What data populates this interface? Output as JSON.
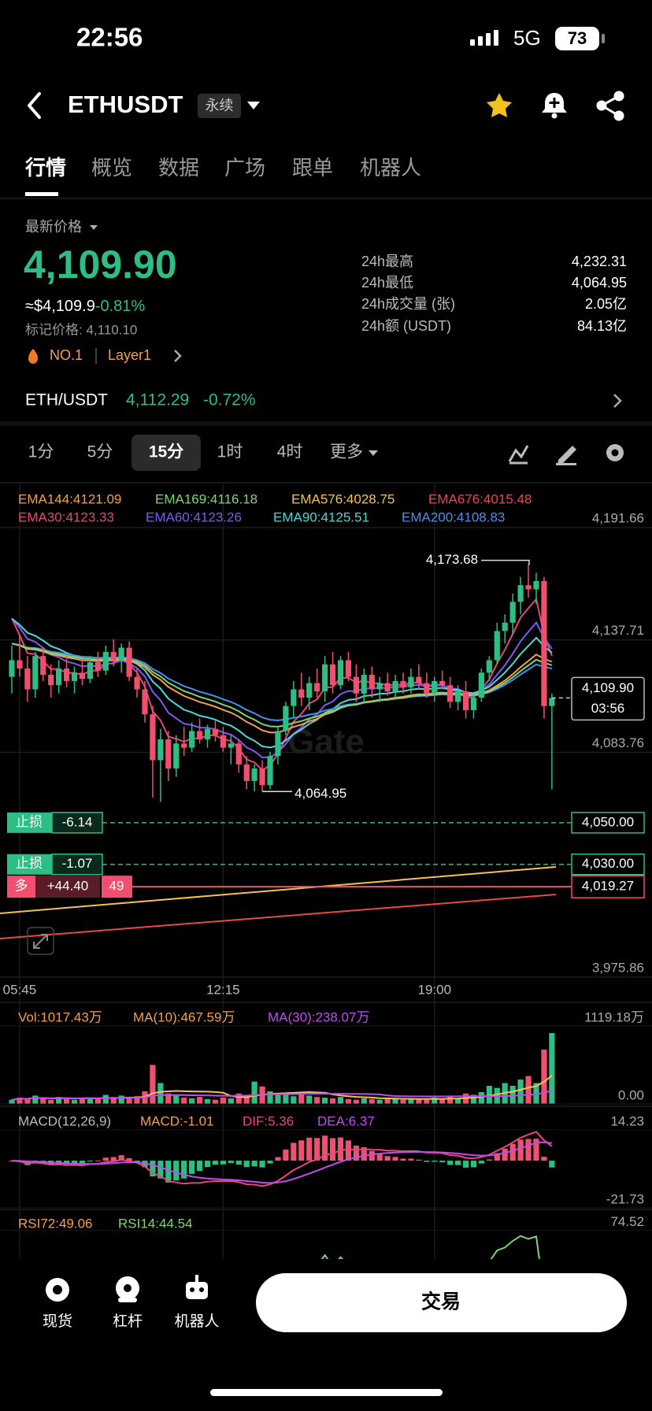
{
  "status_bar": {
    "time": "22:56",
    "network": "5G",
    "battery": "73"
  },
  "header": {
    "symbol": "ETHUSDT",
    "badge": "永续"
  },
  "tabs": [
    "行情",
    "概览",
    "数据",
    "广场",
    "跟单",
    "机器人"
  ],
  "summary": {
    "price_label": "最新价格",
    "price": "4,109.90",
    "usd": "≈$4,109.9",
    "change": "-0.81%",
    "mark_price": "标记价格: 4,110.10",
    "rank": "NO.1",
    "tag": "Layer1",
    "stats": [
      {
        "label": "24h最高",
        "value": "4,232.31"
      },
      {
        "label": "24h最低",
        "value": "4,064.95"
      },
      {
        "label": "24h成交量 (张)",
        "value": "2.05亿"
      },
      {
        "label": "24h额 (USDT)",
        "value": "84.13亿"
      }
    ]
  },
  "spot": {
    "pair": "ETH/USDT",
    "price": "4,112.29",
    "change": "-0.72%"
  },
  "intervals": [
    "1分",
    "5分",
    "15分",
    "1时",
    "4时",
    "更多"
  ],
  "selected_interval": 2,
  "chart": {
    "type": "candlestick",
    "watermark": "Gate",
    "ema_legend": [
      "EMA144:4121.09",
      "EMA169:4116.18",
      "EMA576:4028.75",
      "EMA676:4015.48",
      "EMA30:4123.33",
      "EMA60:4123.26",
      "EMA90:4125.51",
      "EMA200:4108.83"
    ],
    "ema_colors": [
      "#f0a050",
      "#7ed56f",
      "#f5c24c",
      "#e84848",
      "#e8457a",
      "#7b5cf0",
      "#4fd6d6",
      "#4a8ff0"
    ],
    "up_color": "#2ebd85",
    "down_color": "#f0506e",
    "ylim": [
      3975.86,
      4212.45
    ],
    "yticks": [
      {
        "value": 4191.66,
        "label": "4,191.66"
      },
      {
        "value": 4137.71,
        "label": "4,137.71"
      },
      {
        "value": 4083.76,
        "label": "4,083.76"
      },
      {
        "value": 3975.86,
        "label": "3,975.86"
      }
    ],
    "grid": true,
    "categories": [
      null,
      "05:45",
      null,
      null,
      null,
      null,
      null,
      null,
      null,
      null,
      null,
      null,
      null,
      null,
      null,
      null,
      null,
      null,
      null,
      null,
      null,
      null,
      null,
      null,
      null,
      null,
      null,
      "12:15",
      null,
      null,
      null,
      null,
      null,
      null,
      null,
      null,
      null,
      null,
      null,
      null,
      null,
      null,
      null,
      null,
      null,
      null,
      null,
      null,
      null,
      null,
      null,
      null,
      null,
      null,
      "19:00",
      null,
      null,
      null,
      null,
      null,
      null,
      null,
      null,
      null,
      null,
      null,
      null,
      null,
      null,
      null
    ],
    "candles": [
      [
        4120,
        4135,
        4112,
        4128
      ],
      [
        4128,
        4140,
        4120,
        4124
      ],
      [
        4124,
        4130,
        4108,
        4114
      ],
      [
        4114,
        4132,
        4110,
        4130
      ],
      [
        4130,
        4134,
        4118,
        4121
      ],
      [
        4121,
        4126,
        4110,
        4116
      ],
      [
        4116,
        4128,
        4112,
        4124
      ],
      [
        4124,
        4130,
        4115,
        4118
      ],
      [
        4118,
        4125,
        4112,
        4122
      ],
      [
        4122,
        4128,
        4116,
        4119
      ],
      [
        4119,
        4130,
        4117,
        4127
      ],
      [
        4127,
        4132,
        4120,
        4123
      ],
      [
        4123,
        4135,
        4121,
        4132
      ],
      [
        4132,
        4138,
        4125,
        4128
      ],
      [
        4128,
        4136,
        4122,
        4134
      ],
      [
        4134,
        4137,
        4118,
        4120
      ],
      [
        4120,
        4124,
        4110,
        4114
      ],
      [
        4114,
        4118,
        4098,
        4102
      ],
      [
        4102,
        4106,
        4062,
        4080
      ],
      [
        4080,
        4095,
        4060,
        4090
      ],
      [
        4090,
        4094,
        4070,
        4076
      ],
      [
        4076,
        4092,
        4072,
        4088
      ],
      [
        4088,
        4096,
        4082,
        4086
      ],
      [
        4086,
        4098,
        4084,
        4094
      ],
      [
        4094,
        4100,
        4088,
        4090
      ],
      [
        4090,
        4097,
        4086,
        4095
      ],
      [
        4095,
        4099,
        4089,
        4092
      ],
      [
        4092,
        4096,
        4084,
        4086
      ],
      [
        4086,
        4092,
        4078,
        4088
      ],
      [
        4088,
        4090,
        4074,
        4078
      ],
      [
        4078,
        4082,
        4066,
        4070
      ],
      [
        4070,
        4078,
        4065,
        4076
      ],
      [
        4076,
        4080,
        4064.95,
        4068
      ],
      [
        4068,
        4084,
        4066,
        4082
      ],
      [
        4082,
        4096,
        4078,
        4094
      ],
      [
        4094,
        4108,
        4092,
        4106
      ],
      [
        4106,
        4118,
        4100,
        4114
      ],
      [
        4114,
        4122,
        4106,
        4110
      ],
      [
        4110,
        4120,
        4104,
        4117
      ],
      [
        4117,
        4124,
        4110,
        4113
      ],
      [
        4113,
        4130,
        4108,
        4126
      ],
      [
        4126,
        4132,
        4112,
        4116
      ],
      [
        4116,
        4130,
        4114,
        4128
      ],
      [
        4128,
        4132,
        4118,
        4120
      ],
      [
        4120,
        4126,
        4108,
        4112
      ],
      [
        4112,
        4124,
        4108,
        4121
      ],
      [
        4121,
        4125,
        4110,
        4114
      ],
      [
        4114,
        4120,
        4108,
        4117
      ],
      [
        4117,
        4122,
        4111,
        4113
      ],
      [
        4113,
        4121,
        4110,
        4118
      ],
      [
        4118,
        4122,
        4112,
        4115
      ],
      [
        4115,
        4124,
        4112,
        4120
      ],
      [
        4120,
        4126,
        4114,
        4117
      ],
      [
        4117,
        4122,
        4110,
        4112
      ],
      [
        4112,
        4120,
        4108,
        4118
      ],
      [
        4118,
        4123,
        4114,
        4116
      ],
      [
        4116,
        4120,
        4105,
        4108
      ],
      [
        4108,
        4116,
        4104,
        4113
      ],
      [
        4113,
        4118,
        4100,
        4104
      ],
      [
        4104,
        4112,
        4100,
        4110
      ],
      [
        4110,
        4124,
        4108,
        4122
      ],
      [
        4122,
        4130,
        4118,
        4128
      ],
      [
        4128,
        4146,
        4126,
        4142
      ],
      [
        4142,
        4150,
        4136,
        4146
      ],
      [
        4146,
        4160,
        4140,
        4156
      ],
      [
        4156,
        4168,
        4150,
        4164
      ],
      [
        4164,
        4173.68,
        4158,
        4162
      ],
      [
        4162,
        4170,
        4155,
        4166
      ],
      [
        4166,
        4168,
        4100,
        4106
      ],
      [
        4106,
        4112,
        4066,
        4109.9
      ]
    ],
    "high_label": {
      "value": 4173.68,
      "label": "4,173.68"
    },
    "low_label": {
      "value": 4064.95,
      "label": "4,064.95"
    },
    "last_price": {
      "value": 4109.9,
      "label": "4,109.90",
      "countdown": "03:56"
    },
    "orders": [
      {
        "label": "止损",
        "pnl": "-6.14",
        "price": {
          "value": 4050,
          "label": "4,050.00"
        }
      },
      {
        "label": "止损",
        "pnl": "-1.07",
        "price": {
          "value": 4030,
          "label": "4,030.00"
        }
      }
    ],
    "position": {
      "side": "多",
      "pnl": "+44.40",
      "qty": "49",
      "price": {
        "value": 4019.27,
        "label": "4,019.27"
      }
    }
  },
  "volume": {
    "legend": [
      "Vol:1017.43万",
      "MA(10):467.59万",
      "MA(30):238.07万"
    ],
    "ylim": [
      0,
      1458
    ],
    "yticks": [
      {
        "value": 1119.18,
        "label": "1119.18万"
      },
      {
        "value": 0,
        "label": "0.00"
      }
    ],
    "values": [
      60,
      90,
      70,
      120,
      80,
      60,
      100,
      70,
      60,
      90,
      80,
      70,
      130,
      100,
      120,
      90,
      110,
      180,
      560,
      300,
      150,
      120,
      90,
      80,
      100,
      70,
      60,
      90,
      80,
      150,
      120,
      320,
      250,
      180,
      160,
      130,
      110,
      150,
      120,
      100,
      90,
      80,
      100,
      70,
      60,
      80,
      70,
      60,
      90,
      70,
      60,
      80,
      70,
      60,
      90,
      70,
      110,
      80,
      150,
      130,
      170,
      260,
      230,
      300,
      260,
      350,
      400,
      300,
      780,
      1017.43
    ]
  },
  "macd": {
    "legend": [
      "MACD(12,26,9)",
      "MACD:-1.01",
      "DIF:5.36",
      "DEA:6.37"
    ],
    "ylim": [
      -22.5,
      25.1
    ],
    "yticks": [
      14.23,
      -21.73
    ]
  },
  "rsi": {
    "legend": [
      "RSI72:49.06",
      "RSI14:44.54"
    ],
    "ylim": [
      60,
      85
    ],
    "yticks": [
      74.52
    ]
  },
  "nav": {
    "items": [
      "现货",
      "杠杆",
      "机器人"
    ],
    "trade": "交易"
  }
}
